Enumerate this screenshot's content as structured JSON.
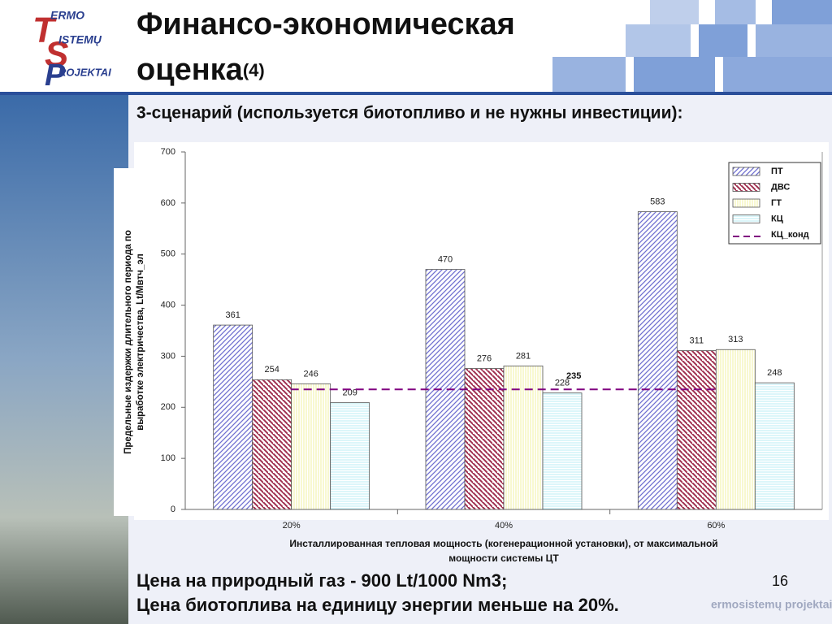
{
  "logo": {
    "lines": [
      "ERMO",
      "ISTEMŲ",
      "ROJEKTAI"
    ]
  },
  "header": {
    "title": "Финансо-экономическая",
    "title2": "оценка",
    "number": "(4)"
  },
  "subtitle": "3-сценарий (используется биотопливо и не нужны инвестиции):",
  "chart_data": {
    "type": "bar",
    "categories": [
      "20%",
      "40%",
      "60%"
    ],
    "series": [
      {
        "name": "ПТ",
        "color": "#6f6fd0",
        "values": [
          361,
          470,
          583
        ]
      },
      {
        "name": "ДВС",
        "color": "#a03050",
        "values": [
          254,
          276,
          311
        ]
      },
      {
        "name": "ГТ",
        "color": "#f0f0a0",
        "values": [
          246,
          281,
          313
        ]
      },
      {
        "name": "КЦ",
        "color": "#b8eef4",
        "values": [
          209,
          228,
          248
        ]
      },
      {
        "name": "КЦ_конд",
        "color": "#800080",
        "type": "line",
        "dashed": true,
        "values": [
          235,
          235,
          235
        ]
      }
    ],
    "ylim": [
      0,
      700
    ],
    "yticks": [
      0,
      100,
      200,
      300,
      400,
      500,
      600,
      700
    ],
    "ylabel": "Предельные издержки длительного периода по выработке электричества, Lt/Мвтч_эл",
    "xlabel": "Инсталлированная тепловая мощность (когенерационной установки), от максимальной мощности системы ЦТ",
    "legend": "upper right"
  },
  "footer": {
    "lines": [
      "Цена на природный газ - 900 Lt/1000 Nm3;",
      "Цена биотоплива на единицу энергии меньше на 20%."
    ],
    "page": "16",
    "watermark": "ermosistemų projektai\""
  }
}
